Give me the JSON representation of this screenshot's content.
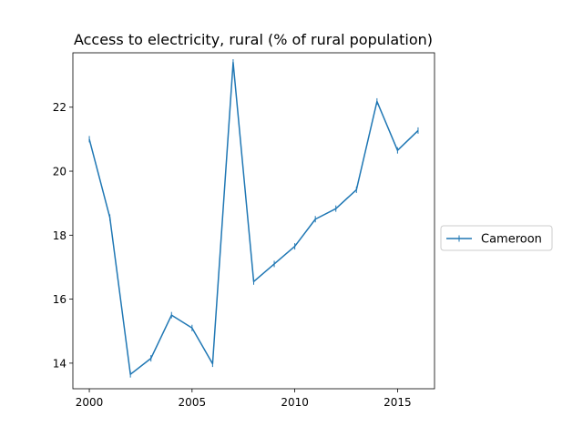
{
  "chart_data": {
    "type": "line",
    "title": "Access to electricity, rural (% of rural population)",
    "xlabel": "",
    "ylabel": "",
    "x": [
      2000,
      2001,
      2002,
      2003,
      2004,
      2005,
      2006,
      2007,
      2008,
      2009,
      2010,
      2011,
      2012,
      2013,
      2014,
      2015,
      2016
    ],
    "series": [
      {
        "name": "Cameroon",
        "values": [
          21.0,
          18.55,
          13.65,
          14.15,
          15.5,
          15.1,
          13.98,
          23.4,
          16.55,
          17.1,
          17.65,
          18.5,
          18.83,
          19.42,
          22.18,
          20.65,
          21.27
        ],
        "color": "#1f77b4"
      }
    ],
    "xlim": [
      1999.2,
      2016.8
    ],
    "ylim": [
      13.2,
      23.7
    ],
    "xticks": [
      2000,
      2005,
      2010,
      2015
    ],
    "yticks": [
      14,
      16,
      18,
      20,
      22
    ],
    "legend_position": "right-outside",
    "grid": false
  }
}
